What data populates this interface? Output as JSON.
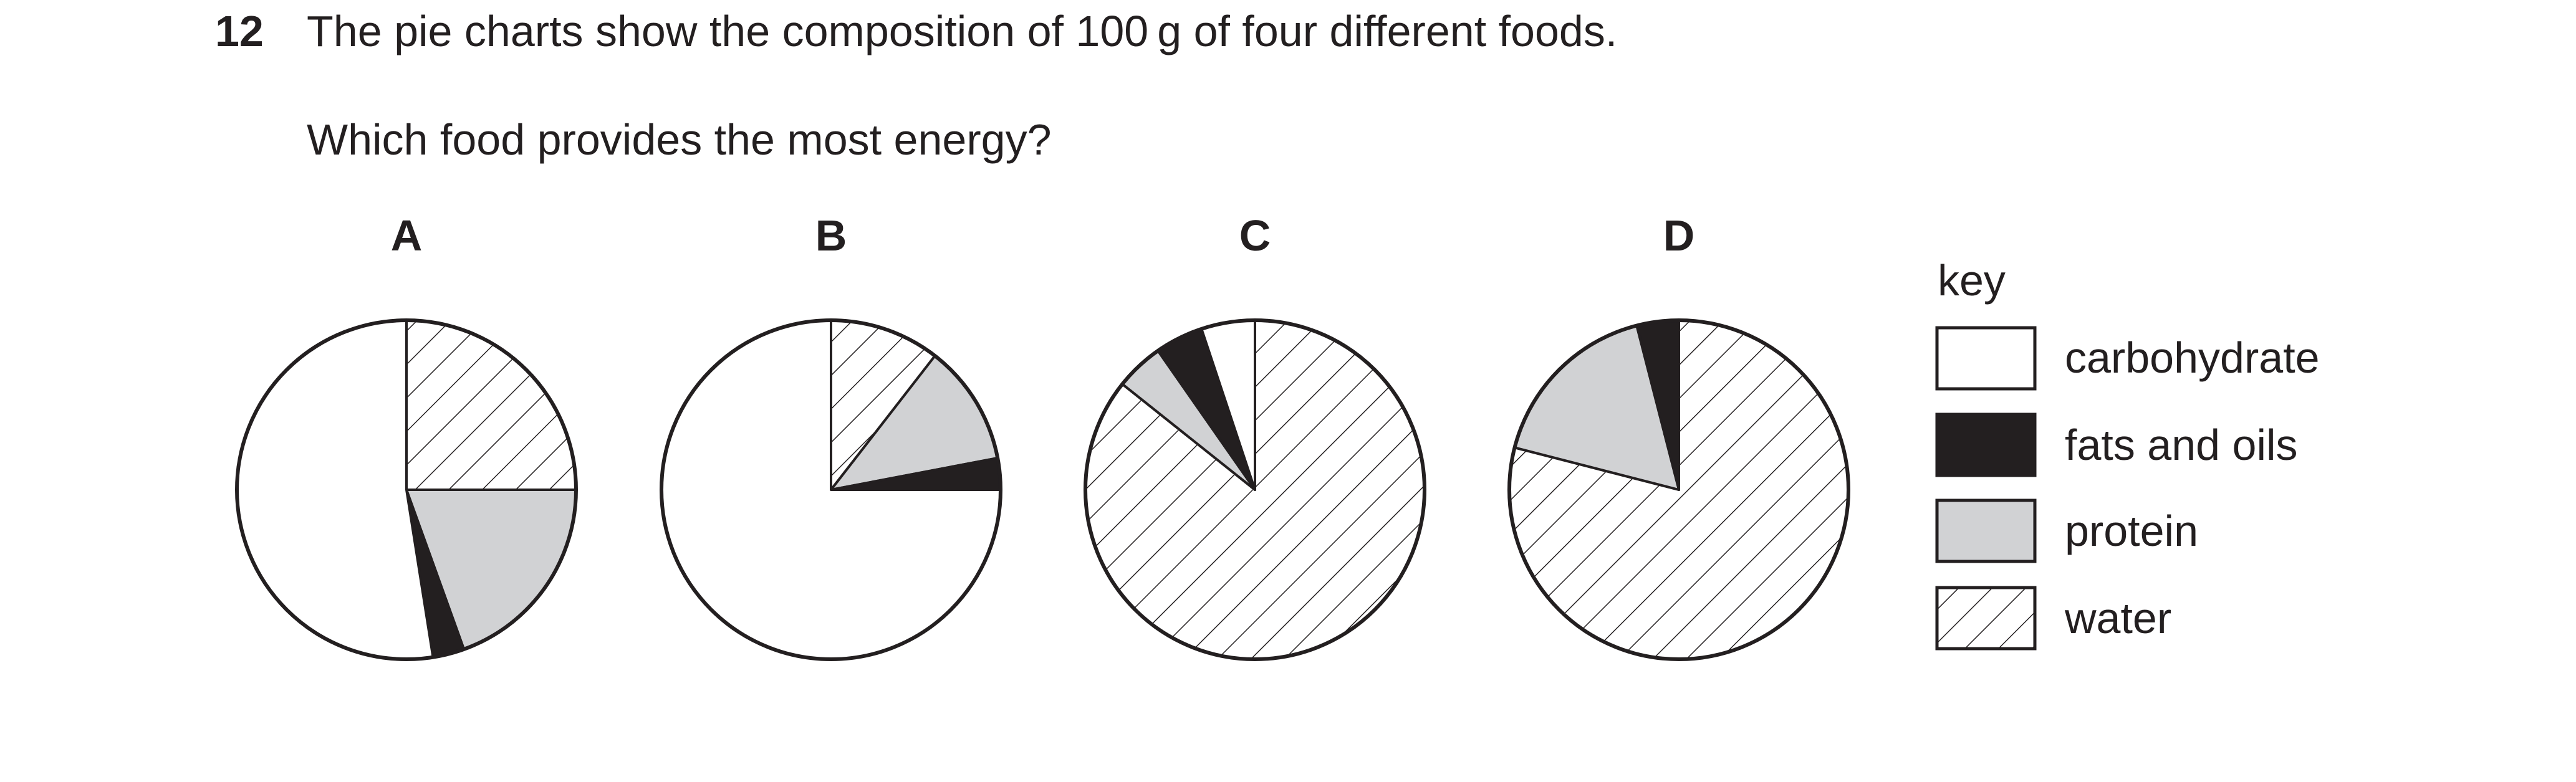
{
  "question": {
    "number": "12",
    "stem": "The pie charts show the composition of 100 g of four different foods.",
    "prompt": "Which food provides the most energy?"
  },
  "key": {
    "title": "key",
    "items": [
      {
        "id": "carbohydrate",
        "label": "carbohydrate",
        "fill": "#ffffff"
      },
      {
        "id": "fats",
        "label": "fats and oils",
        "fill": "#231f20"
      },
      {
        "id": "protein",
        "label": "protein",
        "fill": "#d1d2d4"
      },
      {
        "id": "water",
        "label": "water",
        "fill": "hatch"
      }
    ]
  },
  "colors": {
    "ink": "#231f20",
    "protein": "#d1d2d4",
    "background": "#ffffff"
  },
  "chart_data": [
    {
      "type": "pie",
      "title": "A",
      "start_angle": "12 o'clock",
      "direction": "clockwise",
      "slices": [
        {
          "label": "water",
          "value": 25
        },
        {
          "label": "protein",
          "value": 19.5
        },
        {
          "label": "fats and oils",
          "value": 3
        },
        {
          "label": "carbohydrate",
          "value": 52.5
        }
      ]
    },
    {
      "type": "pie",
      "title": "B",
      "start_angle": "12 o'clock",
      "direction": "clockwise",
      "slices": [
        {
          "label": "water",
          "value": 10.5
        },
        {
          "label": "protein",
          "value": 11.5
        },
        {
          "label": "fats and oils",
          "value": 3
        },
        {
          "label": "carbohydrate",
          "value": 75
        }
      ]
    },
    {
      "type": "pie",
      "title": "C",
      "start_angle": "12 o'clock",
      "direction": "clockwise",
      "slices": [
        {
          "label": "water",
          "value": 84
        },
        {
          "label": "protein",
          "value": 4.5
        },
        {
          "label": "fats and oils",
          "value": 4.5
        },
        {
          "label": "carbohydrate",
          "value": 5
        }
      ]
    },
    {
      "type": "pie",
      "title": "D",
      "start_angle": "12 o'clock",
      "direction": "clockwise",
      "slices": [
        {
          "label": "water",
          "value": 79
        },
        {
          "label": "protein",
          "value": 17
        },
        {
          "label": "fats and oils",
          "value": 4
        }
      ]
    }
  ]
}
